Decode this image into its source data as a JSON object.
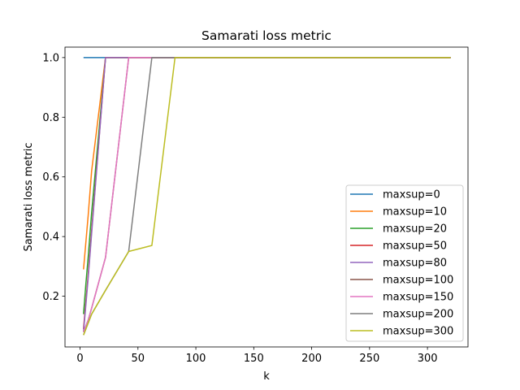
{
  "chart_data": {
    "type": "line",
    "title": "Samarati loss metric",
    "xlabel": "k",
    "ylabel": "Samarati loss metric",
    "xlim": [
      -13,
      335
    ],
    "ylim": [
      0.03,
      1.035
    ],
    "xticks": [
      0,
      50,
      100,
      150,
      200,
      250,
      300
    ],
    "yticks": [
      0.2,
      0.4,
      0.6,
      0.8,
      1.0
    ],
    "ytick_labels": [
      "0.2",
      "0.4",
      "0.6",
      "0.8",
      "1.0"
    ],
    "grid": false,
    "legend_position": "lower-right",
    "x": [
      3,
      5,
      7,
      10,
      22,
      42,
      62,
      82,
      102,
      122,
      142,
      162,
      182,
      202,
      222,
      242,
      262,
      282,
      302,
      320
    ],
    "series": [
      {
        "name": "maxsup=0",
        "color": "#1f77b4",
        "values": [
          1,
          1,
          1,
          1,
          1,
          1,
          1,
          1,
          1,
          1,
          1,
          1,
          1,
          1,
          1,
          1,
          1,
          1,
          1,
          1
        ]
      },
      {
        "name": "maxsup=10",
        "color": "#ff7f0e",
        "values": [
          0.29,
          0.38,
          0.47,
          0.62,
          1,
          1,
          1,
          1,
          1,
          1,
          1,
          1,
          1,
          1,
          1,
          1,
          1,
          1,
          1,
          1
        ]
      },
      {
        "name": "maxsup=20",
        "color": "#2ca02c",
        "values": [
          0.14,
          0.24,
          0.33,
          0.48,
          1,
          1,
          1,
          1,
          1,
          1,
          1,
          1,
          1,
          1,
          1,
          1,
          1,
          1,
          1,
          1
        ]
      },
      {
        "name": "maxsup=50",
        "color": "#d62728",
        "values": [
          0.09,
          0.18,
          0.27,
          0.42,
          1,
          1,
          1,
          1,
          1,
          1,
          1,
          1,
          1,
          1,
          1,
          1,
          1,
          1,
          1,
          1
        ]
      },
      {
        "name": "maxsup=80",
        "color": "#9467bd",
        "values": [
          0.08,
          0.17,
          0.26,
          0.41,
          1,
          1,
          1,
          1,
          1,
          1,
          1,
          1,
          1,
          1,
          1,
          1,
          1,
          1,
          1,
          1
        ]
      },
      {
        "name": "maxsup=100",
        "color": "#8c564b",
        "values": [
          0.08,
          0.1,
          0.12,
          0.16,
          0.33,
          1,
          1,
          1,
          1,
          1,
          1,
          1,
          1,
          1,
          1,
          1,
          1,
          1,
          1,
          1
        ]
      },
      {
        "name": "maxsup=150",
        "color": "#e377c2",
        "values": [
          0.08,
          0.1,
          0.12,
          0.16,
          0.33,
          1,
          1,
          1,
          1,
          1,
          1,
          1,
          1,
          1,
          1,
          1,
          1,
          1,
          1,
          1
        ]
      },
      {
        "name": "maxsup=200",
        "color": "#7f7f7f",
        "values": [
          0.07,
          0.09,
          0.11,
          0.14,
          0.22,
          0.35,
          1,
          1,
          1,
          1,
          1,
          1,
          1,
          1,
          1,
          1,
          1,
          1,
          1,
          1
        ]
      },
      {
        "name": "maxsup=300",
        "color": "#bcbd22",
        "values": [
          0.07,
          0.09,
          0.11,
          0.14,
          0.22,
          0.35,
          0.37,
          1,
          1,
          1,
          1,
          1,
          1,
          1,
          1,
          1,
          1,
          1,
          1,
          1
        ]
      }
    ]
  }
}
